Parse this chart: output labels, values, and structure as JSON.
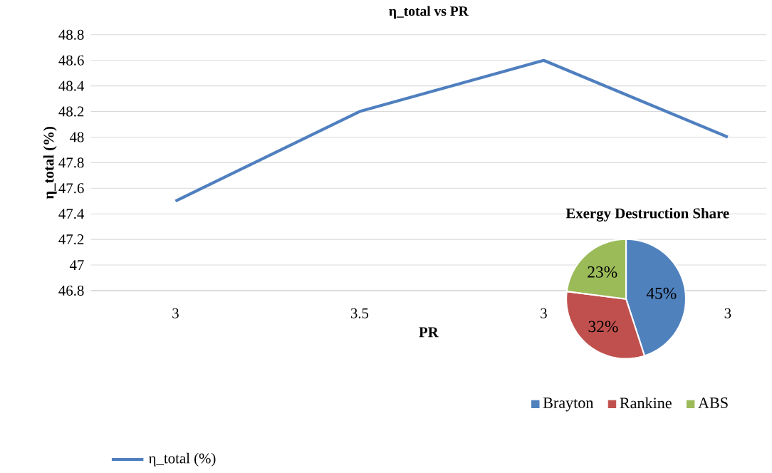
{
  "chart_data": [
    {
      "type": "line",
      "title": "η_total vs PR",
      "xlabel": "PR",
      "ylabel": "η_total (%)",
      "categories": [
        "3",
        "3.5",
        "3",
        "3"
      ],
      "series": [
        {
          "name": "η_total (%)",
          "color": "#4f7fbf",
          "values": [
            47.5,
            48.2,
            48.6,
            48.0
          ]
        }
      ],
      "ylim": [
        46.8,
        48.8
      ],
      "yticks": [
        46.8,
        47,
        47.2,
        47.4,
        47.6,
        47.8,
        48,
        48.2,
        48.4,
        48.6,
        48.8
      ],
      "grid": "y",
      "legend": "bottom left"
    },
    {
      "type": "pie",
      "title": "Exergy Destruction Share",
      "categories": [
        "Brayton",
        "Rankine",
        "ABS"
      ],
      "values": [
        45,
        32,
        23
      ],
      "colors": [
        "#4f81bd",
        "#c0504d",
        "#9bbb59"
      ],
      "value_labels": [
        "45%",
        "32%",
        "23%"
      ],
      "legend": "bottom"
    }
  ]
}
